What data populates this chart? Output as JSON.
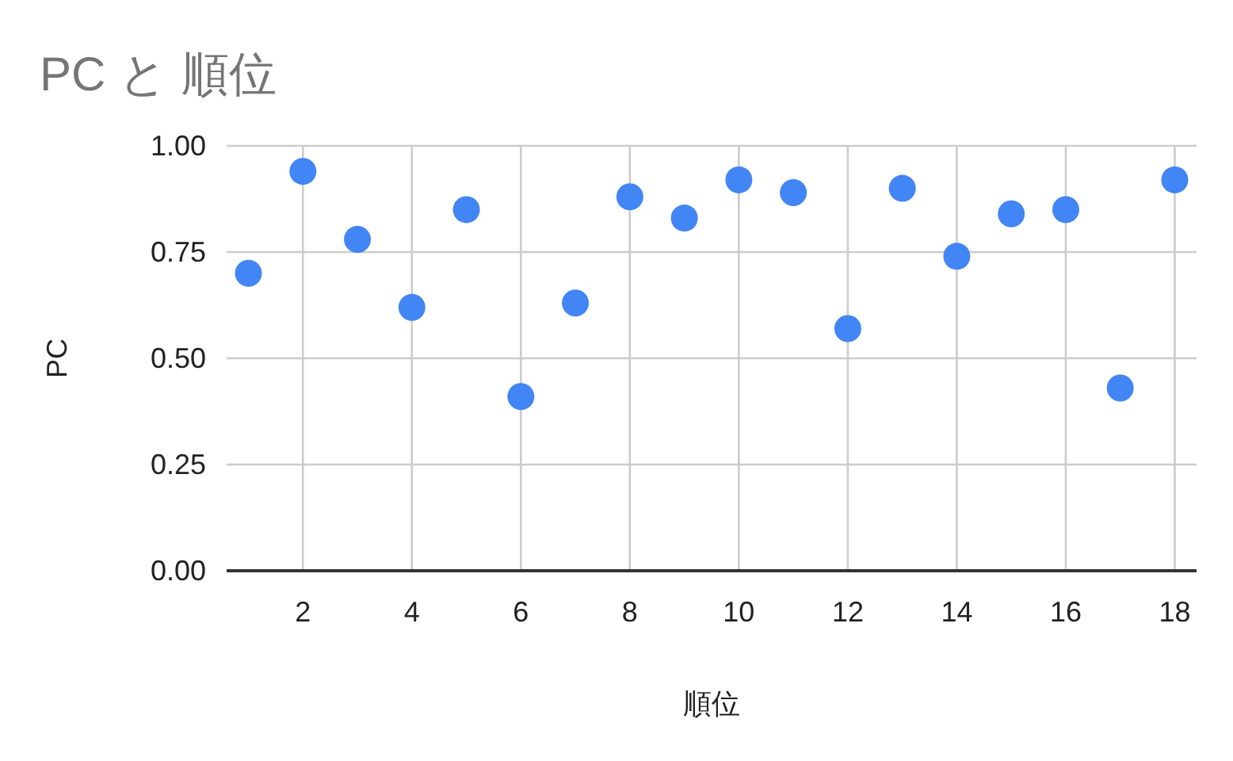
{
  "chart_data": {
    "type": "scatter",
    "title": "PC と 順位",
    "xlabel": "順位",
    "ylabel": "PC",
    "x": [
      1,
      2,
      3,
      4,
      5,
      6,
      7,
      8,
      9,
      10,
      11,
      12,
      13,
      14,
      15,
      16,
      17,
      18
    ],
    "values": [
      0.7,
      0.94,
      0.78,
      0.62,
      0.85,
      0.41,
      0.63,
      0.88,
      0.83,
      0.92,
      0.89,
      0.57,
      0.9,
      0.74,
      0.84,
      0.85,
      0.43,
      0.92
    ],
    "color": "#4285f4",
    "marker": "circle",
    "xlim": [
      0.6,
      18.4
    ],
    "xticks": [
      2,
      4,
      6,
      8,
      10,
      12,
      14,
      16,
      18
    ],
    "ylim": [
      0,
      1
    ],
    "yticks": [
      {
        "value": 0,
        "label": "0.00"
      },
      {
        "value": 0.25,
        "label": "0.25"
      },
      {
        "value": 0.5,
        "label": "0.50"
      },
      {
        "value": 0.75,
        "label": "0.75"
      },
      {
        "value": 1,
        "label": "1.00"
      }
    ],
    "grid": true
  }
}
